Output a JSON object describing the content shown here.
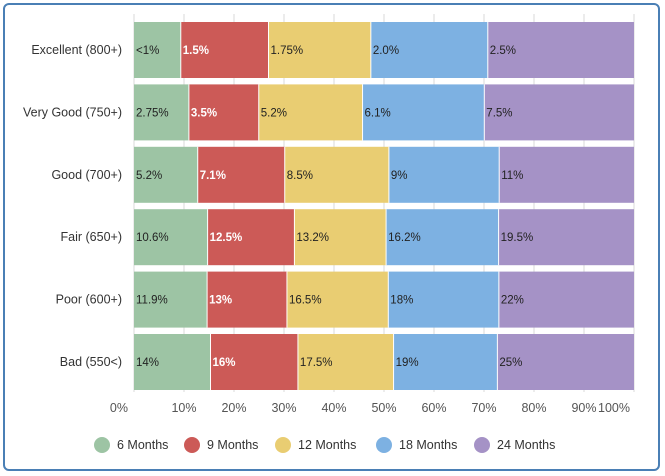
{
  "chart_data": {
    "type": "bar",
    "orientation": "horizontal",
    "stacked": true,
    "normalized": true,
    "categories": [
      "Excellent (800+)",
      "Very Good (750+)",
      "Good (700+)",
      "Fair (650+)",
      "Poor (600+)",
      "Bad (550<)"
    ],
    "series": [
      {
        "name": "6 Months",
        "color": "#9dc4a4",
        "label_color": "#222222",
        "values": [
          0.8,
          2.75,
          5.2,
          10.6,
          11.9,
          14
        ],
        "labels": [
          "<1%",
          "2.75%",
          "5.2%",
          "10.6%",
          "11.9%",
          "14%"
        ]
      },
      {
        "name": "9 Months",
        "color": "#cc5a57",
        "label_color": "#ffffff",
        "values": [
          1.5,
          3.5,
          7.1,
          12.5,
          13,
          16
        ],
        "labels": [
          "1.5%",
          "3.5%",
          "7.1%",
          "12.5%",
          "13%",
          "16%"
        ]
      },
      {
        "name": "12 Months",
        "color": "#e9cd72",
        "label_color": "#222222",
        "values": [
          1.75,
          5.2,
          8.5,
          13.2,
          16.5,
          17.5
        ],
        "labels": [
          "1.75%",
          "5.2%",
          "8.5%",
          "13.2%",
          "16.5%",
          "17.5%"
        ]
      },
      {
        "name": "18 Months",
        "color": "#7db1e2",
        "label_color": "#222222",
        "values": [
          2.0,
          6.1,
          9,
          16.2,
          18,
          19
        ],
        "labels": [
          "2.0%",
          "6.1%",
          "9%",
          "16.2%",
          "18%",
          "19%"
        ]
      },
      {
        "name": "24 Months",
        "color": "#a592c6",
        "label_color": "#222222",
        "values": [
          2.5,
          7.5,
          11,
          19.5,
          22,
          25
        ],
        "labels": [
          "2.5%",
          "7.5%",
          "11%",
          "19.5%",
          "22%",
          "25%"
        ]
      }
    ],
    "x_ticks": [
      "0%",
      "10%",
      "20%",
      "30%",
      "40%",
      "50%",
      "60%",
      "70%",
      "80%",
      "90%",
      "100%"
    ],
    "xlim": [
      0,
      100
    ],
    "grid": true,
    "legend_position": "bottom"
  }
}
